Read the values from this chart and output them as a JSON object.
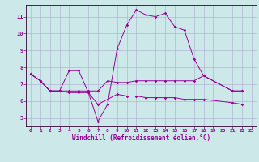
{
  "xlabel": "Windchill (Refroidissement éolien,°C)",
  "background_color": "#cde8e8",
  "grid_color": "#aaaacc",
  "line_color": "#990099",
  "spine_color": "#330033",
  "xlim": [
    -0.5,
    23.5
  ],
  "ylim": [
    4.5,
    11.7
  ],
  "xticks": [
    0,
    1,
    2,
    3,
    4,
    5,
    6,
    7,
    8,
    9,
    10,
    11,
    12,
    13,
    14,
    15,
    16,
    17,
    18,
    19,
    20,
    21,
    22,
    23
  ],
  "yticks": [
    5,
    6,
    7,
    8,
    9,
    10,
    11
  ],
  "series": [
    [
      7.6,
      7.2,
      6.6,
      6.6,
      7.8,
      7.8,
      6.5,
      4.8,
      5.8,
      9.1,
      10.5,
      11.4,
      11.1,
      11.0,
      11.2,
      10.4,
      10.2,
      8.5,
      7.5,
      null,
      null,
      6.6,
      6.6,
      null
    ],
    [
      7.6,
      7.2,
      6.6,
      6.6,
      6.6,
      6.6,
      6.6,
      6.6,
      7.2,
      7.1,
      7.1,
      7.2,
      7.2,
      7.2,
      7.2,
      7.2,
      7.2,
      7.2,
      7.5,
      null,
      null,
      6.6,
      6.6,
      null
    ],
    [
      7.6,
      7.2,
      6.6,
      6.6,
      6.5,
      6.5,
      6.5,
      5.8,
      6.1,
      6.4,
      6.3,
      6.3,
      6.2,
      6.2,
      6.2,
      6.2,
      6.1,
      6.1,
      6.1,
      null,
      null,
      5.9,
      5.8,
      null
    ]
  ]
}
